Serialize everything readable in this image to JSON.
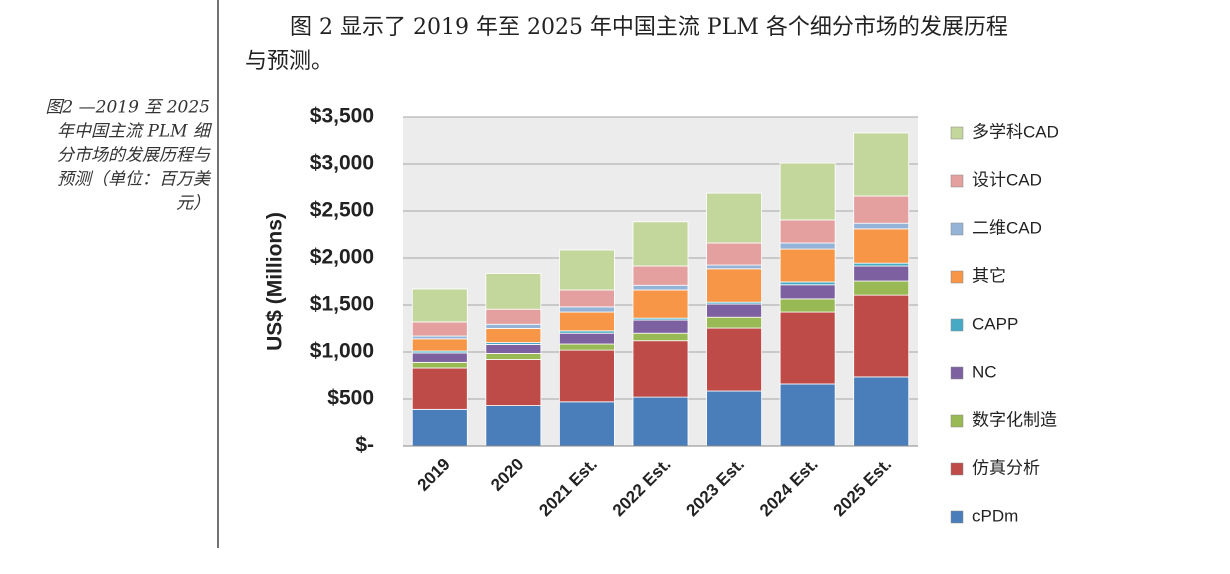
{
  "caption_lines": [
    "图2 —2019 至 2025",
    "年中国主流 PLM 细",
    "分市场的发展历程与",
    "预测（单位：百万美",
    "元）"
  ],
  "paragraph_lines": [
    "图 2 显示了 2019 年至 2025 年中国主流 PLM 各个细分市场的发展历程",
    "与预测。"
  ],
  "chart_data": {
    "type": "stacked_bar",
    "y_label": "US$ (Millions)",
    "categories": [
      "2019",
      "2020",
      "2021 Est.",
      "2022 Est.",
      "2023 Est.",
      "2024 Est.",
      "2025 Est."
    ],
    "ylim": [
      0,
      3500
    ],
    "yticks": [
      {
        "value": 0,
        "label": "$-"
      },
      {
        "value": 500,
        "label": "$500"
      },
      {
        "value": 1000,
        "label": "$1,000"
      },
      {
        "value": 1500,
        "label": "$1,500"
      },
      {
        "value": 2000,
        "label": "$2,000"
      },
      {
        "value": 2500,
        "label": "$2,500"
      },
      {
        "value": 3000,
        "label": "$3,000"
      },
      {
        "value": 3500,
        "label": "$3,500"
      }
    ],
    "grid": true,
    "legend": "right",
    "series": [
      {
        "name": "cPDm",
        "color": "#4a7ebb",
        "values": [
          390,
          430,
          470,
          520,
          585,
          660,
          735
        ]
      },
      {
        "name": "仿真分析",
        "color": "#be4b48",
        "values": [
          440,
          490,
          550,
          600,
          670,
          765,
          870
        ]
      },
      {
        "name": "数字化制造",
        "color": "#98b954",
        "values": [
          60,
          65,
          65,
          80,
          115,
          140,
          150
        ]
      },
      {
        "name": "NC",
        "color": "#7d60a0",
        "values": [
          100,
          95,
          115,
          140,
          140,
          150,
          160
        ]
      },
      {
        "name": "CAPP",
        "color": "#46aac5",
        "values": [
          20,
          20,
          25,
          20,
          20,
          30,
          30
        ]
      },
      {
        "name": "其它",
        "color": "#f79646",
        "values": [
          130,
          150,
          200,
          300,
          355,
          350,
          365
        ]
      },
      {
        "name": "二维CAD",
        "color": "#95b3d7",
        "values": [
          30,
          45,
          55,
          50,
          40,
          65,
          60
        ]
      },
      {
        "name": "设计CAD",
        "color": "#e3a09f",
        "values": [
          150,
          160,
          180,
          205,
          235,
          245,
          290
        ]
      },
      {
        "name": "多学科CAD",
        "color": "#c3d69b",
        "values": [
          350,
          380,
          425,
          470,
          530,
          605,
          670
        ]
      }
    ]
  }
}
